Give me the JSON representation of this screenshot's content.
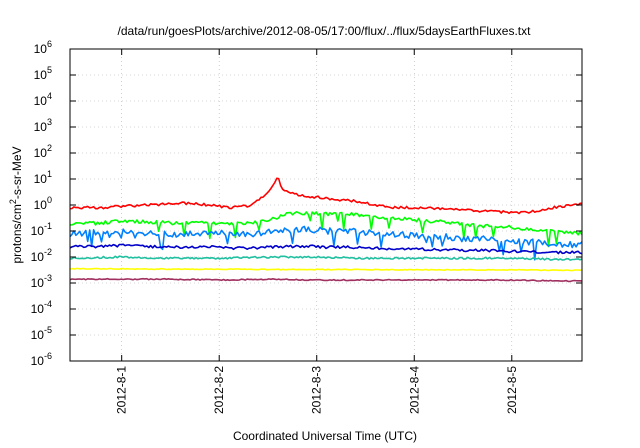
{
  "chart_data": {
    "type": "line",
    "title": "/data/run/goesPlots/archive/2012-08-05/17:00/flux/../flux/5daysEarthFluxes.txt",
    "xlabel": "Coordinated Universal Time (UTC)",
    "ylabel_parts": [
      "protons/cm",
      "2",
      "-s-sr-MeV"
    ],
    "y_scale": "log",
    "ylim": [
      1e-06,
      1000000.0
    ],
    "y_ticks": [
      {
        "base": "10",
        "exp": "6",
        "value": 1000000.0
      },
      {
        "base": "10",
        "exp": "5",
        "value": 100000.0
      },
      {
        "base": "10",
        "exp": "4",
        "value": 10000.0
      },
      {
        "base": "10",
        "exp": "3",
        "value": 1000.0
      },
      {
        "base": "10",
        "exp": "2",
        "value": 100.0
      },
      {
        "base": "10",
        "exp": "1",
        "value": 10.0
      },
      {
        "base": "10",
        "exp": "0",
        "value": 1
      },
      {
        "base": "10",
        "exp": "-1",
        "value": 0.1
      },
      {
        "base": "10",
        "exp": "-2",
        "value": 0.01
      },
      {
        "base": "10",
        "exp": "-3",
        "value": 0.001
      },
      {
        "base": "10",
        "exp": "-4",
        "value": 0.0001
      },
      {
        "base": "10",
        "exp": "-5",
        "value": 1e-05
      },
      {
        "base": "10",
        "exp": "-6",
        "value": 1e-06
      }
    ],
    "x_range_days": [
      -0.53,
      4.72
    ],
    "x_ticks": [
      {
        "label": "2012-8-1",
        "day": 0
      },
      {
        "label": "2012-8-2",
        "day": 1
      },
      {
        "label": "2012-8-3",
        "day": 2
      },
      {
        "label": "2012-8-4",
        "day": 3
      },
      {
        "label": "2012-8-5",
        "day": 4
      }
    ],
    "grid": true,
    "legend": "none",
    "series": [
      {
        "color": "#ff0000",
        "x": [
          -0.53,
          -0.2,
          0.0,
          0.3,
          0.6,
          0.9,
          1.1,
          1.3,
          1.4,
          1.5,
          1.55,
          1.6,
          1.65,
          1.7,
          1.8,
          2.0,
          2.2,
          2.4,
          2.6,
          2.8,
          3.0,
          3.3,
          3.6,
          3.9,
          4.1,
          4.3,
          4.5,
          4.72
        ],
        "y": [
          0.8,
          0.8,
          0.9,
          1.0,
          1.2,
          1.0,
          0.8,
          0.9,
          1.5,
          3,
          6,
          12,
          4,
          3,
          2.5,
          2.0,
          1.6,
          1.4,
          1.0,
          0.8,
          0.8,
          0.7,
          0.6,
          0.55,
          0.5,
          0.6,
          0.9,
          1.1
        ]
      },
      {
        "color": "#00ff00",
        "x": [
          -0.53,
          -0.2,
          0.0,
          0.3,
          0.6,
          0.9,
          1.1,
          1.3,
          1.5,
          1.7,
          1.9,
          2.1,
          2.3,
          2.5,
          2.7,
          2.9,
          3.1,
          3.3,
          3.5,
          3.7,
          3.9,
          4.1,
          4.3,
          4.5,
          4.72
        ],
        "y": [
          0.2,
          0.2,
          0.25,
          0.22,
          0.2,
          0.2,
          0.18,
          0.2,
          0.25,
          0.45,
          0.5,
          0.45,
          0.45,
          0.4,
          0.3,
          0.3,
          0.25,
          0.22,
          0.18,
          0.15,
          0.15,
          0.12,
          0.1,
          0.09,
          0.08
        ]
      },
      {
        "color": "#0080ff",
        "x": [
          -0.53,
          -0.2,
          0.0,
          0.3,
          0.6,
          0.9,
          1.1,
          1.3,
          1.5,
          1.7,
          1.9,
          2.1,
          2.3,
          2.5,
          2.7,
          2.9,
          3.1,
          3.3,
          3.5,
          3.7,
          3.9,
          4.1,
          4.3,
          4.5,
          4.72
        ],
        "y": [
          0.08,
          0.09,
          0.1,
          0.08,
          0.07,
          0.09,
          0.08,
          0.07,
          0.09,
          0.1,
          0.12,
          0.1,
          0.1,
          0.09,
          0.08,
          0.07,
          0.06,
          0.06,
          0.05,
          0.05,
          0.04,
          0.04,
          0.035,
          0.03,
          0.03
        ]
      },
      {
        "color": "#0000c8",
        "x": [
          -0.53,
          -0.2,
          0.0,
          0.3,
          0.6,
          0.9,
          1.1,
          1.3,
          1.5,
          1.7,
          1.9,
          2.1,
          2.3,
          2.5,
          2.7,
          2.9,
          3.1,
          3.3,
          3.5,
          3.7,
          3.9,
          4.1,
          4.3,
          4.5,
          4.72
        ],
        "y": [
          0.025,
          0.025,
          0.028,
          0.025,
          0.024,
          0.025,
          0.022,
          0.022,
          0.024,
          0.025,
          0.026,
          0.024,
          0.024,
          0.022,
          0.021,
          0.02,
          0.02,
          0.019,
          0.018,
          0.018,
          0.017,
          0.016,
          0.015,
          0.015,
          0.015
        ]
      },
      {
        "color": "#20c0a0",
        "x": [
          -0.53,
          0.0,
          0.5,
          1.0,
          1.5,
          2.0,
          2.5,
          3.0,
          3.5,
          4.0,
          4.5,
          4.72
        ],
        "y": [
          0.009,
          0.01,
          0.009,
          0.009,
          0.01,
          0.01,
          0.009,
          0.009,
          0.009,
          0.009,
          0.008,
          0.008
        ]
      },
      {
        "color": "#ffff00",
        "x": [
          -0.53,
          0.0,
          0.5,
          1.0,
          1.5,
          2.0,
          2.5,
          3.0,
          3.5,
          4.0,
          4.5,
          4.72
        ],
        "y": [
          0.0035,
          0.0035,
          0.0034,
          0.0034,
          0.0033,
          0.0033,
          0.0033,
          0.0032,
          0.0032,
          0.0032,
          0.0031,
          0.0031
        ]
      },
      {
        "color": "#a03060",
        "x": [
          -0.53,
          0.0,
          0.5,
          1.0,
          1.5,
          2.0,
          2.5,
          3.0,
          3.5,
          4.0,
          4.5,
          4.72
        ],
        "y": [
          0.0014,
          0.0014,
          0.0014,
          0.0013,
          0.0014,
          0.0013,
          0.0013,
          0.0013,
          0.0013,
          0.0013,
          0.0012,
          0.0012
        ]
      }
    ]
  }
}
